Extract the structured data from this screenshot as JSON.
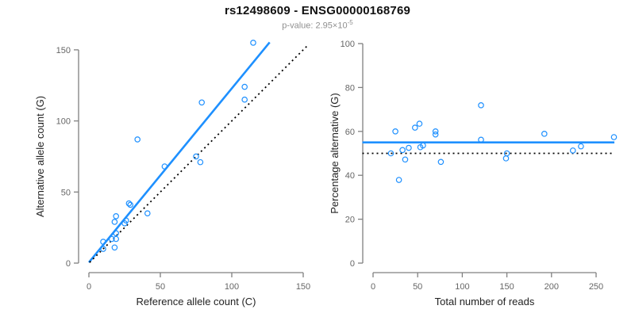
{
  "header": {
    "title": "rs12498609 - ENSG00000168769",
    "p_label": "p-value: 2.95×10",
    "p_exponent": "-5"
  },
  "colors": {
    "accent": "#1E90FF",
    "reference_line": "#000000",
    "axis_line": "#808080",
    "tick_label": "#666666",
    "axis_title": "#222222",
    "title": "#111111",
    "subtitle": "#909090"
  },
  "chart_data": [
    {
      "type": "scatter",
      "panel": "left",
      "xlabel": "Reference allele count (C)",
      "ylabel": "Alternative allele count (G)",
      "xlim": [
        0,
        150
      ],
      "ylim": [
        0,
        150
      ],
      "xticks": [
        0,
        50,
        100,
        150
      ],
      "yticks": [
        0,
        50,
        100,
        150
      ],
      "grid": false,
      "x": [
        10,
        10,
        18,
        16,
        19,
        19,
        18,
        19,
        25,
        26,
        28,
        29,
        41,
        34,
        53,
        78,
        75,
        79,
        109,
        109,
        115
      ],
      "y": [
        10,
        15,
        11,
        17,
        17,
        21,
        29,
        33,
        28,
        30,
        42,
        41,
        35,
        87,
        68,
        71,
        75,
        113,
        115,
        124,
        155
      ],
      "lines": [
        {
          "name": "fit-line",
          "style": "solid",
          "color_key": "accent",
          "width": 2.6,
          "x1": 0,
          "y1": 0.5,
          "x2": 126.5,
          "y2": 155.3
        },
        {
          "name": "identity-line",
          "style": "dotted",
          "color_key": "reference_line",
          "width": 1.8,
          "x1": 0.5,
          "y1": 0.5,
          "x2": 153.5,
          "y2": 153.5
        }
      ]
    },
    {
      "type": "scatter",
      "panel": "right",
      "xlabel": "Total number of reads",
      "ylabel": "Percentage alternative (G)",
      "xlim": [
        0,
        250
      ],
      "ylim": [
        0,
        100
      ],
      "xticks": [
        0,
        50,
        100,
        150,
        200,
        250
      ],
      "yticks": [
        0,
        20,
        40,
        60,
        80,
        100
      ],
      "grid": false,
      "x": [
        20,
        25,
        29,
        33,
        36,
        40,
        47,
        52,
        53,
        56,
        70,
        70,
        76,
        121,
        121,
        149,
        150,
        192,
        224,
        233,
        270
      ],
      "y": [
        50,
        60,
        37.9,
        51.5,
        47.2,
        52.5,
        61.7,
        63.5,
        52.8,
        53.6,
        60,
        58.6,
        46.1,
        71.9,
        56.2,
        47.7,
        50,
        58.9,
        51.3,
        53.2,
        57.4
      ],
      "lines": [
        {
          "name": "fit-line",
          "style": "solid",
          "color_key": "accent",
          "width": 2.6,
          "x1": -12,
          "y1": 55,
          "x2": 270.5,
          "y2": 55
        },
        {
          "name": "null-line",
          "style": "dotted",
          "color_key": "reference_line",
          "width": 1.8,
          "x1": -12,
          "y1": 50,
          "x2": 270.5,
          "y2": 50
        }
      ]
    }
  ]
}
